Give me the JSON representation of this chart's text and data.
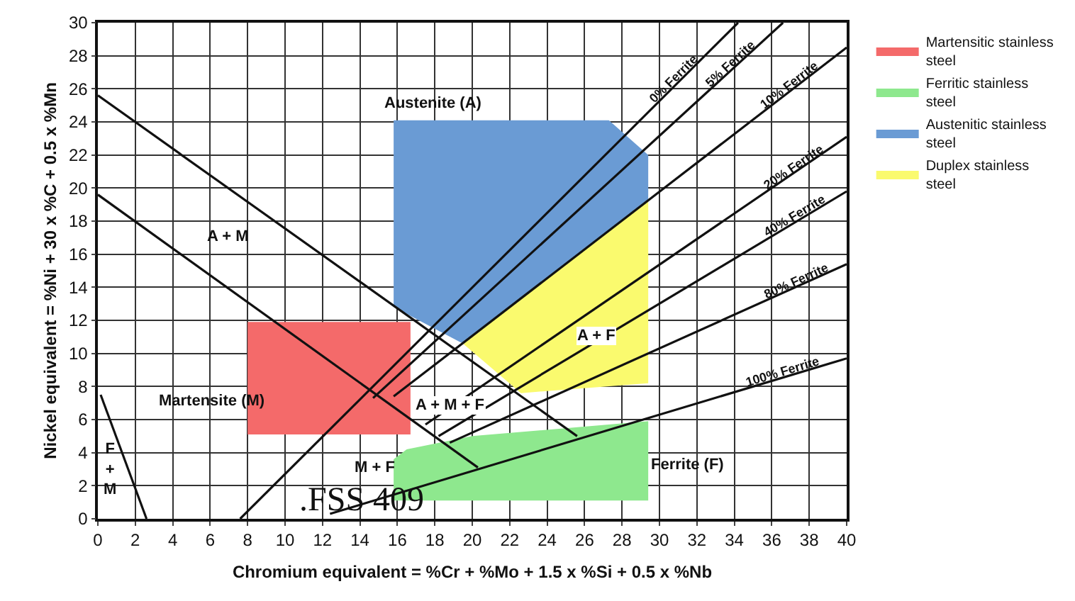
{
  "chart_data": {
    "type": "line",
    "xlabel": "Chromium equivalent = %Cr + %Mo + 1.5 x %Si + 0.5 x %Nb",
    "ylabel": "Nickel equivalent = %Ni + 30 x %C + 0.5 x %Mn",
    "xlim": [
      0,
      40
    ],
    "xticks": [
      0,
      2,
      4,
      6,
      8,
      10,
      12,
      14,
      16,
      18,
      20,
      22,
      24,
      26,
      28,
      30,
      32,
      34,
      36,
      38,
      40
    ],
    "ylim": [
      0,
      30
    ],
    "yticks": [
      0,
      2,
      4,
      6,
      8,
      10,
      12,
      14,
      16,
      18,
      20,
      22,
      24,
      26,
      28,
      30
    ],
    "grid": true,
    "legend": "top right",
    "series": [
      {
        "name": "Martensitic stainless steel",
        "type": "area",
        "color": "#f46a6a",
        "x": [
          8.0,
          16.7,
          16.7,
          8.0
        ],
        "values": [
          11.9,
          11.9,
          5.1,
          5.1
        ]
      },
      {
        "name": "Ferritic stainless steel",
        "type": "area",
        "color": "#8ee88e",
        "x": [
          15.8,
          16.5,
          20,
          29.4,
          29.4,
          15.8
        ],
        "values": [
          3.6,
          4.2,
          5.0,
          5.9,
          1.1,
          1.1
        ]
      },
      {
        "name": "Austenitic stainless steel",
        "type": "area",
        "color": "#6a9bd4",
        "x": [
          15.8,
          27.3,
          29.4,
          29.4,
          19.5,
          15.8
        ],
        "values": [
          24.1,
          24.1,
          22.0,
          19.3,
          10.6,
          12.8
        ]
      },
      {
        "name": "Duplex stainless steel",
        "type": "area",
        "color": "#fafa6e",
        "x": [
          19.5,
          29.4,
          29.4,
          22.6
        ],
        "values": [
          10.6,
          19.3,
          8.2,
          7.6
        ]
      },
      {
        "color": "#111111",
        "x": [
          0,
          25.6
        ],
        "values": [
          25.6,
          5.0
        ]
      },
      {
        "color": "#111111",
        "x": [
          0,
          20.3
        ],
        "values": [
          19.6,
          3.1
        ]
      },
      {
        "color": "#111111",
        "x": [
          0.15,
          2.6
        ],
        "values": [
          7.5,
          0
        ]
      },
      {
        "name": "0% Ferrite",
        "color": "#111111",
        "x": [
          7.6,
          34.2
        ],
        "values": [
          0,
          30
        ]
      },
      {
        "name": "5% Ferrite",
        "color": "#111111",
        "x": [
          14.7,
          36.6
        ],
        "values": [
          7.3,
          30
        ]
      },
      {
        "name": "10% Ferrite",
        "color": "#111111",
        "x": [
          15.8,
          40
        ],
        "values": [
          7.4,
          28.5
        ]
      },
      {
        "name": "20% Ferrite",
        "color": "#111111",
        "x": [
          17.5,
          40
        ],
        "values": [
          5.7,
          23.1
        ]
      },
      {
        "name": "40% Ferrite",
        "color": "#111111",
        "x": [
          18.2,
          40
        ],
        "values": [
          5.0,
          19.8
        ]
      },
      {
        "name": "80% Ferrite",
        "color": "#111111",
        "x": [
          18.8,
          40
        ],
        "values": [
          4.6,
          15.4
        ]
      },
      {
        "name": "100% Ferrite",
        "color": "#111111",
        "x": [
          12.4,
          40
        ],
        "values": [
          0.3,
          9.7
        ]
      }
    ],
    "annotations": [
      "Austenite (A)",
      "A + M",
      "Martensite (M)",
      "A + M + F",
      "A + F",
      "M + F",
      "Ferrite (F)",
      "F\n+\nM",
      ".FSS 409"
    ]
  }
}
